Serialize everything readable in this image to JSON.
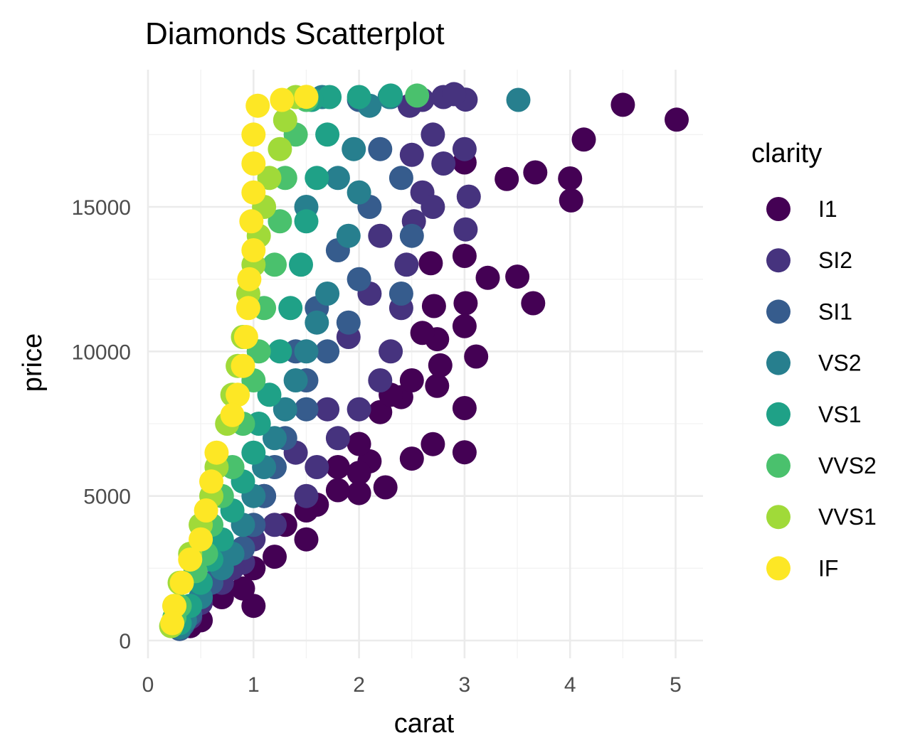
{
  "chart_data": {
    "type": "scatter",
    "title": "Diamonds Scatterplot",
    "xlabel": "carat",
    "ylabel": "price",
    "xlim": [
      0,
      5.25
    ],
    "ylim": [
      0,
      19600
    ],
    "x_ticks": [
      0,
      1,
      2,
      3,
      4,
      5
    ],
    "y_ticks": [
      0,
      5000,
      10000,
      15000
    ],
    "x_tick_labels": [
      "0",
      "1",
      "2",
      "3",
      "4",
      "5"
    ],
    "y_tick_labels": [
      "0",
      "5000",
      "10000",
      "15000"
    ],
    "grid": true,
    "legend": {
      "title": "clarity",
      "position": "right",
      "entries": [
        {
          "label": "I1",
          "color": "#440154"
        },
        {
          "label": "SI2",
          "color": "#46337E"
        },
        {
          "label": "SI1",
          "color": "#365C8D"
        },
        {
          "label": "VS2",
          "color": "#277F8E"
        },
        {
          "label": "VS1",
          "color": "#1FA187"
        },
        {
          "label": "VVS2",
          "color": "#4AC16D"
        },
        {
          "label": "VVS1",
          "color": "#A0DA39"
        },
        {
          "label": "IF",
          "color": "#FDE725"
        }
      ]
    },
    "series": [
      {
        "name": "I1",
        "points": [
          [
            5.01,
            18018
          ],
          [
            4.5,
            18531
          ],
          [
            4.13,
            17329
          ],
          [
            4.01,
            15223
          ],
          [
            4.0,
            15984
          ],
          [
            3.67,
            16193
          ],
          [
            3.4,
            15964
          ],
          [
            3.65,
            11668
          ],
          [
            3.5,
            12587
          ],
          [
            3.22,
            12545
          ],
          [
            3.0,
            16536
          ],
          [
            3.0,
            13303
          ],
          [
            3.01,
            11668
          ],
          [
            3.0,
            10874
          ],
          [
            3.11,
            9823
          ],
          [
            3.0,
            8040
          ],
          [
            3.0,
            6512
          ],
          [
            2.74,
            10424
          ],
          [
            2.71,
            11569
          ],
          [
            2.68,
            13050
          ],
          [
            2.6,
            10640
          ],
          [
            2.74,
            8807
          ],
          [
            2.7,
            6795
          ],
          [
            2.5,
            6292
          ],
          [
            2.77,
            9520
          ],
          [
            2.4,
            8420
          ],
          [
            2.2,
            7900
          ],
          [
            2.25,
            5300
          ],
          [
            2.1,
            6200
          ],
          [
            2.0,
            5800
          ],
          [
            2.0,
            5100
          ],
          [
            1.8,
            5200
          ],
          [
            1.6,
            4700
          ],
          [
            1.5,
            4500
          ],
          [
            1.5,
            3500
          ],
          [
            1.2,
            2900
          ],
          [
            1.3,
            4000
          ],
          [
            1.0,
            2500
          ],
          [
            1.0,
            1200
          ],
          [
            0.9,
            1800
          ],
          [
            0.7,
            1500
          ],
          [
            0.5,
            700
          ],
          [
            0.4,
            500
          ],
          [
            2.5,
            9000
          ],
          [
            2.3,
            8500
          ],
          [
            2.0,
            6800
          ],
          [
            1.8,
            6000
          ]
        ]
      },
      {
        "name": "SI2",
        "points": [
          [
            3.01,
            18710
          ],
          [
            3.0,
            17000
          ],
          [
            3.04,
            15354
          ],
          [
            3.01,
            14220
          ],
          [
            2.8,
            18800
          ],
          [
            2.6,
            18700
          ],
          [
            2.48,
            18500
          ],
          [
            2.7,
            17500
          ],
          [
            2.8,
            16500
          ],
          [
            2.6,
            15500
          ],
          [
            2.52,
            14500
          ],
          [
            2.45,
            13000
          ],
          [
            2.4,
            11500
          ],
          [
            2.3,
            10000
          ],
          [
            2.2,
            9000
          ],
          [
            2.0,
            8000
          ],
          [
            1.8,
            7000
          ],
          [
            1.6,
            6000
          ],
          [
            1.5,
            5000
          ],
          [
            1.2,
            4000
          ],
          [
            1.0,
            3500
          ],
          [
            0.9,
            2700
          ],
          [
            0.75,
            2700
          ],
          [
            0.8,
            2500
          ],
          [
            0.7,
            2000
          ],
          [
            0.5,
            1300
          ],
          [
            0.4,
            800
          ],
          [
            0.3,
            500
          ],
          [
            2.9,
            18900
          ],
          [
            2.7,
            15000
          ],
          [
            2.5,
            16800
          ],
          [
            2.2,
            14000
          ],
          [
            2.1,
            12000
          ],
          [
            1.7,
            8000
          ],
          [
            1.4,
            6500
          ],
          [
            1.1,
            5000
          ],
          [
            1.9,
            10500
          ]
        ]
      },
      {
        "name": "SI1",
        "points": [
          [
            2.3,
            18800
          ],
          [
            2.0,
            18700
          ],
          [
            2.2,
            17000
          ],
          [
            2.4,
            16000
          ],
          [
            2.1,
            15000
          ],
          [
            2.5,
            14000
          ],
          [
            2.4,
            12000
          ],
          [
            2.0,
            12500
          ],
          [
            1.9,
            11000
          ],
          [
            1.7,
            10000
          ],
          [
            1.5,
            9000
          ],
          [
            1.5,
            8000
          ],
          [
            1.3,
            7000
          ],
          [
            1.2,
            6000
          ],
          [
            1.1,
            5000
          ],
          [
            1.0,
            4000
          ],
          [
            0.9,
            3200
          ],
          [
            0.7,
            2700
          ],
          [
            0.6,
            2000
          ],
          [
            0.5,
            1500
          ],
          [
            0.4,
            900
          ],
          [
            0.33,
            550
          ],
          [
            0.3,
            400
          ],
          [
            1.8,
            13500
          ],
          [
            1.6,
            11500
          ],
          [
            1.4,
            10000
          ]
        ]
      },
      {
        "name": "VS2",
        "points": [
          [
            3.51,
            18701
          ],
          [
            2.29,
            18800
          ],
          [
            2.1,
            18500
          ],
          [
            1.95,
            17000
          ],
          [
            2.0,
            15500
          ],
          [
            1.9,
            14000
          ],
          [
            1.7,
            12000
          ],
          [
            1.6,
            11000
          ],
          [
            1.5,
            10000
          ],
          [
            1.4,
            9000
          ],
          [
            1.3,
            8000
          ],
          [
            1.2,
            7000
          ],
          [
            1.1,
            6000
          ],
          [
            1.0,
            5000
          ],
          [
            0.9,
            4000
          ],
          [
            0.8,
            3000
          ],
          [
            0.7,
            2500
          ],
          [
            0.5,
            1500
          ],
          [
            0.35,
            700
          ],
          [
            0.3,
            450
          ],
          [
            1.8,
            16000
          ],
          [
            1.65,
            18800
          ],
          [
            1.5,
            15000
          ]
        ]
      },
      {
        "name": "VS1",
        "points": [
          [
            2.3,
            18850
          ],
          [
            1.72,
            18800
          ],
          [
            1.7,
            17500
          ],
          [
            1.6,
            16000
          ],
          [
            1.5,
            14500
          ],
          [
            1.45,
            13000
          ],
          [
            1.35,
            11500
          ],
          [
            1.25,
            10000
          ],
          [
            1.15,
            8500
          ],
          [
            1.05,
            7500
          ],
          [
            1.0,
            6500
          ],
          [
            0.9,
            5500
          ],
          [
            0.8,
            4500
          ],
          [
            0.7,
            3500
          ],
          [
            0.6,
            2800
          ],
          [
            0.5,
            2000
          ],
          [
            0.4,
            1200
          ],
          [
            0.3,
            600
          ],
          [
            2.0,
            18800
          ],
          [
            1.55,
            18700
          ]
        ]
      },
      {
        "name": "VVS2",
        "points": [
          [
            2.55,
            18850
          ],
          [
            1.5,
            18700
          ],
          [
            1.4,
            17500
          ],
          [
            1.3,
            16000
          ],
          [
            1.25,
            14500
          ],
          [
            1.2,
            13000
          ],
          [
            1.1,
            11500
          ],
          [
            1.05,
            10000
          ],
          [
            1.0,
            9000
          ],
          [
            0.9,
            7500
          ],
          [
            0.8,
            6000
          ],
          [
            0.7,
            5000
          ],
          [
            0.6,
            4000
          ],
          [
            0.55,
            3000
          ],
          [
            0.45,
            2400
          ],
          [
            0.3,
            1200
          ],
          [
            0.25,
            800
          ]
        ]
      },
      {
        "name": "VVS1",
        "points": [
          [
            1.4,
            18800
          ],
          [
            1.3,
            18000
          ],
          [
            1.25,
            17000
          ],
          [
            1.15,
            16000
          ],
          [
            1.1,
            15000
          ],
          [
            1.05,
            14000
          ],
          [
            1.0,
            13000
          ],
          [
            0.95,
            12000
          ],
          [
            0.9,
            10500
          ],
          [
            0.85,
            9500
          ],
          [
            0.8,
            8500
          ],
          [
            0.75,
            7500
          ],
          [
            0.65,
            6000
          ],
          [
            0.6,
            5000
          ],
          [
            0.5,
            4000
          ],
          [
            0.4,
            3000
          ],
          [
            0.3,
            2000
          ],
          [
            0.25,
            1200
          ],
          [
            0.22,
            500
          ]
        ]
      },
      {
        "name": "IF",
        "points": [
          [
            1.5,
            18806
          ],
          [
            1.27,
            18700
          ],
          [
            1.04,
            18500
          ],
          [
            1.0,
            17500
          ],
          [
            1.0,
            16500
          ],
          [
            1.0,
            15500
          ],
          [
            0.98,
            14500
          ],
          [
            1.0,
            13500
          ],
          [
            0.96,
            12500
          ],
          [
            0.95,
            11500
          ],
          [
            0.93,
            10500
          ],
          [
            0.9,
            9500
          ],
          [
            0.85,
            8500
          ],
          [
            0.8,
            7800
          ],
          [
            0.65,
            6500
          ],
          [
            0.6,
            5500
          ],
          [
            0.55,
            4500
          ],
          [
            0.5,
            3500
          ],
          [
            0.4,
            2800
          ],
          [
            0.32,
            2000
          ],
          [
            0.25,
            1200
          ],
          [
            0.23,
            600
          ]
        ]
      }
    ]
  }
}
